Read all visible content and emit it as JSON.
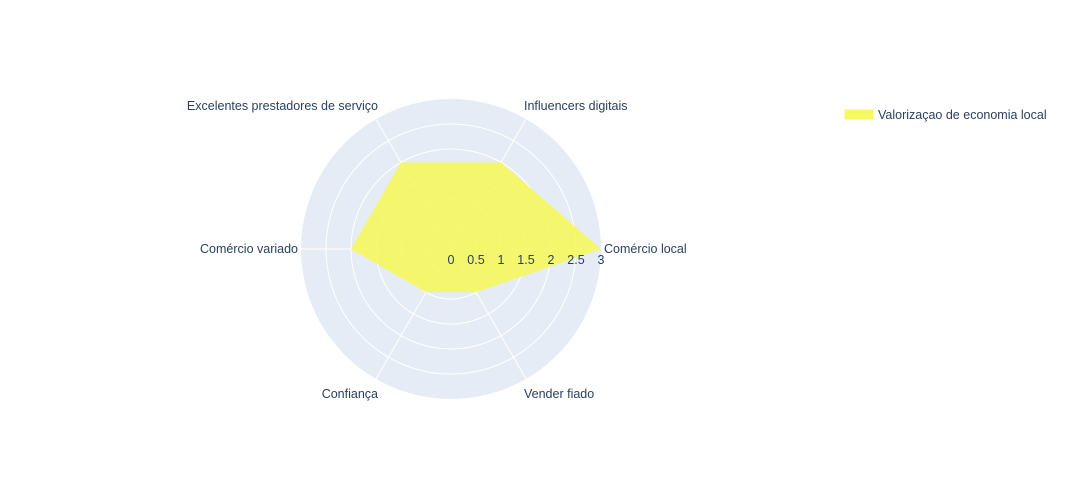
{
  "chart_data": {
    "type": "radar",
    "categories": [
      "Comércio local",
      "Influencers digitais",
      "Excelentes prestadores de serviço",
      "Comércio variado",
      "Confiança",
      "Vender fiado"
    ],
    "series": [
      {
        "name": "Valorizaçao de economia local",
        "values": [
          3,
          2,
          2,
          2,
          1,
          1
        ]
      }
    ],
    "radial_range": [
      0,
      3
    ],
    "radial_ticks": [
      "0",
      "0.5",
      "1",
      "1.5",
      "2",
      "2.5",
      "3"
    ],
    "legend_position": "top-right",
    "grid": true
  },
  "colors": {
    "polar_background": "#e5ecf6",
    "grid": "#ffffff",
    "fill": "#f5f763",
    "text": "#2a3f5f"
  }
}
